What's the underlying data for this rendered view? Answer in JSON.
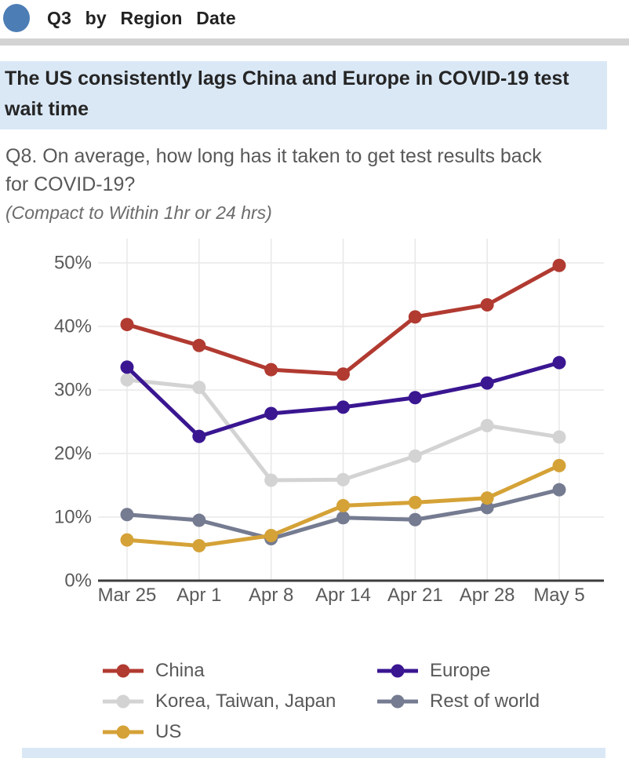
{
  "header": {
    "title": "Q3 by Region Date",
    "dot_color": "#4d7db5"
  },
  "headline": {
    "text": "The US consistently lags China and Europe in COVID-19 test wait time",
    "highlight_color": "#dae8f6"
  },
  "question": "Q8. On average, how long has it taken to get test results back for COVID-19?",
  "note": "(Compact to Within 1hr or 24 hrs)",
  "chart_data": {
    "type": "line",
    "x": [
      "Mar 25",
      "Apr 1",
      "Apr 8",
      "Apr 14",
      "Apr 21",
      "Apr 28",
      "May 5"
    ],
    "series": [
      {
        "name": "China",
        "color": "#b13a31",
        "values": [
          40.3,
          37.0,
          33.2,
          32.5,
          41.5,
          43.4,
          49.6
        ]
      },
      {
        "name": "Europe",
        "color": "#3a1691",
        "values": [
          33.6,
          22.7,
          26.3,
          27.3,
          28.8,
          31.1,
          34.3
        ]
      },
      {
        "name": "Korea, Taiwan, Japan",
        "color": "#d3d3d3",
        "values": [
          31.6,
          30.4,
          15.8,
          15.9,
          19.6,
          24.4,
          22.6
        ]
      },
      {
        "name": "Rest of world",
        "color": "#757b90",
        "values": [
          10.4,
          9.5,
          6.6,
          9.9,
          9.6,
          11.5,
          14.3
        ]
      },
      {
        "name": "US",
        "color": "#d5a237",
        "values": [
          6.4,
          5.5,
          7.1,
          11.8,
          12.3,
          13.0,
          18.1
        ]
      }
    ],
    "draw_order": [
      2,
      3,
      4,
      1,
      0
    ],
    "title": "",
    "xlabel": "",
    "ylabel": "",
    "ylim": [
      0,
      50
    ],
    "ytick_step": 10,
    "ytick_suffix": "%",
    "grid": true,
    "legend_position": "bottom",
    "colors": {
      "gridline": "#e9e9e9",
      "axis_line": "#3d3d3d",
      "tick_label": "#5a5a5a"
    }
  }
}
